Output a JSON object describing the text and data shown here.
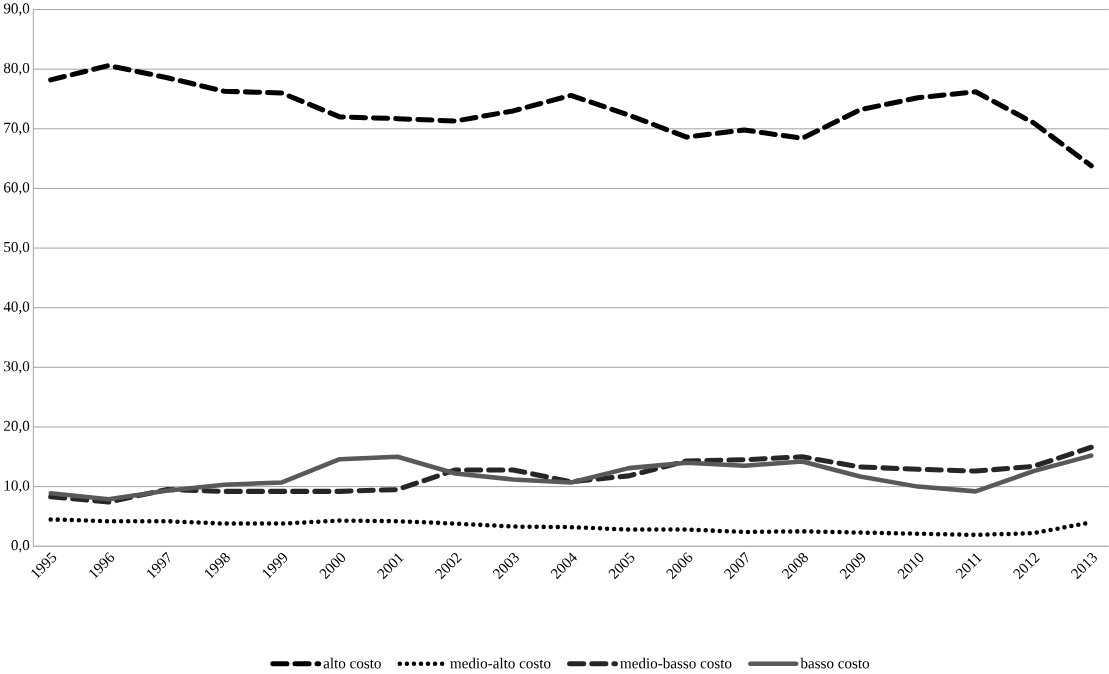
{
  "chart_data": {
    "type": "line",
    "categories": [
      "1995",
      "1996",
      "1997",
      "1998",
      "1999",
      "2000",
      "2001",
      "2002",
      "2003",
      "2004",
      "2005",
      "2006",
      "2007",
      "2008",
      "2009",
      "2010",
      "2011",
      "2012",
      "2013"
    ],
    "series": [
      {
        "name": "alto costo",
        "color": "#000000",
        "line_style": "dashed",
        "values": [
          78.2,
          80.6,
          78.6,
          76.3,
          76.0,
          72.0,
          71.7,
          71.3,
          73.0,
          75.6,
          72.3,
          68.6,
          69.8,
          68.4,
          73.2,
          75.2,
          76.2,
          71.0,
          63.8
        ]
      },
      {
        "name": "medio-alto costo",
        "color": "#000000",
        "line_style": "dotted",
        "values": [
          4.5,
          4.2,
          4.2,
          3.8,
          3.8,
          4.3,
          4.2,
          3.8,
          3.3,
          3.2,
          2.8,
          2.8,
          2.4,
          2.5,
          2.3,
          2.1,
          1.9,
          2.2,
          4.0
        ]
      },
      {
        "name": "medio-basso costo",
        "color": "#262626",
        "line_style": "dashed",
        "values": [
          8.3,
          7.4,
          9.5,
          9.2,
          9.2,
          9.2,
          9.5,
          12.8,
          12.8,
          10.8,
          11.8,
          14.3,
          14.5,
          15.0,
          13.3,
          12.9,
          12.6,
          13.4,
          16.6
        ]
      },
      {
        "name": "basso costo",
        "color": "#595959",
        "line_style": "solid",
        "values": [
          8.9,
          7.9,
          9.3,
          10.3,
          10.7,
          14.6,
          15.0,
          12.2,
          11.2,
          10.7,
          13.1,
          14.0,
          13.5,
          14.2,
          11.7,
          10.0,
          9.2,
          12.6,
          15.2
        ]
      }
    ],
    "ylim": [
      0,
      90
    ],
    "yticks": [
      {
        "value": 0,
        "label": "0,0"
      },
      {
        "value": 10,
        "label": "10,0"
      },
      {
        "value": 20,
        "label": "20,0"
      },
      {
        "value": 30,
        "label": "30,0"
      },
      {
        "value": 40,
        "label": "40,0"
      },
      {
        "value": 50,
        "label": "50,0"
      },
      {
        "value": 60,
        "label": "60,0"
      },
      {
        "value": 70,
        "label": "70,0"
      },
      {
        "value": 80,
        "label": "80,0"
      },
      {
        "value": 90,
        "label": "90,0"
      }
    ],
    "grid": "y",
    "legend": "bottom",
    "marker": "none"
  }
}
